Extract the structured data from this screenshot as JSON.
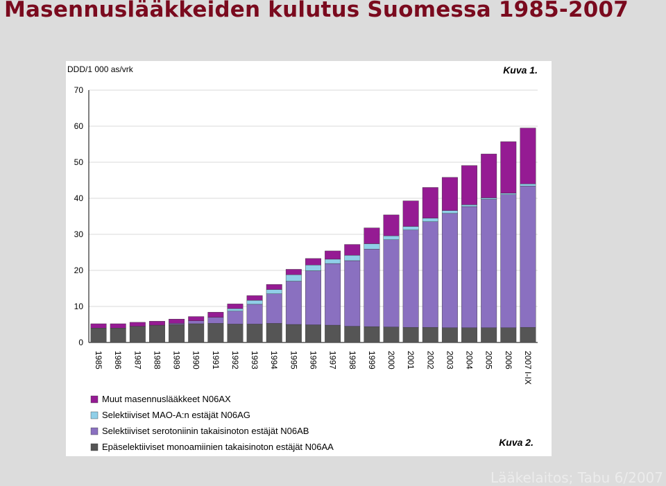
{
  "slide": {
    "title": "Masennuslääkkeiden kulutus Suomessa 1985-2007",
    "title_color": "#7a0a1e",
    "footer": "Lääkelaitos; Tabu 6/2007"
  },
  "chart_data": {
    "type": "bar",
    "stacked": true,
    "unit_label": "DDD/1 000 as/vrk",
    "figure_label_top": "Kuva 1.",
    "figure_label_bottom": "Kuva 2.",
    "ylim": [
      0,
      70
    ],
    "yticks": [
      0,
      10,
      20,
      30,
      40,
      50,
      60,
      70
    ],
    "grid": true,
    "legend_position": "bottom",
    "categories": [
      "1985",
      "1986",
      "1987",
      "1988",
      "1989",
      "1990",
      "1991",
      "1992",
      "1993",
      "1994",
      "1995",
      "1996",
      "1997",
      "1998",
      "1999",
      "2000",
      "2001",
      "2002",
      "2003",
      "2004",
      "2005",
      "2006",
      "2007 I-IX"
    ],
    "series": [
      {
        "name": "Epäselektiiviset monoamiinien takaisinoton estäjät N06AA",
        "color": "#555555",
        "values": [
          4.0,
          4.0,
          4.5,
          4.8,
          5.0,
          5.2,
          5.3,
          5.1,
          5.1,
          5.3,
          5.0,
          4.9,
          4.8,
          4.5,
          4.4,
          4.3,
          4.2,
          4.2,
          4.1,
          4.1,
          4.1,
          4.1,
          4.2
        ]
      },
      {
        "name": "Selektiiviset serotoniinin takaisinoton estäjät N06AB",
        "color": "#8a70c0",
        "values": [
          0,
          0,
          0,
          0,
          0.3,
          0.8,
          1.7,
          3.6,
          5.5,
          8.2,
          12.0,
          15.0,
          17.1,
          18.2,
          21.5,
          24.2,
          27.0,
          29.3,
          31.7,
          33.6,
          35.6,
          36.9,
          39.2
        ]
      },
      {
        "name": "Selektiiviset MAO-A:n estäjät N06AG",
        "color": "#90cfe8",
        "values": [
          0,
          0,
          0,
          0,
          0,
          0,
          0,
          0.7,
          1.1,
          1.2,
          1.8,
          1.6,
          1.2,
          1.5,
          1.5,
          1.1,
          1.0,
          1.0,
          0.8,
          0.5,
          0.4,
          0.4,
          0.6
        ]
      },
      {
        "name": "Muut masennuslääkkeet N06AX",
        "color": "#951b93",
        "values": [
          1.2,
          1.2,
          1.1,
          1.1,
          1.2,
          1.2,
          1.4,
          1.3,
          1.3,
          1.4,
          1.5,
          1.8,
          2.3,
          3.0,
          4.4,
          5.8,
          7.1,
          8.5,
          9.2,
          10.9,
          12.2,
          14.3,
          15.5
        ]
      }
    ]
  }
}
